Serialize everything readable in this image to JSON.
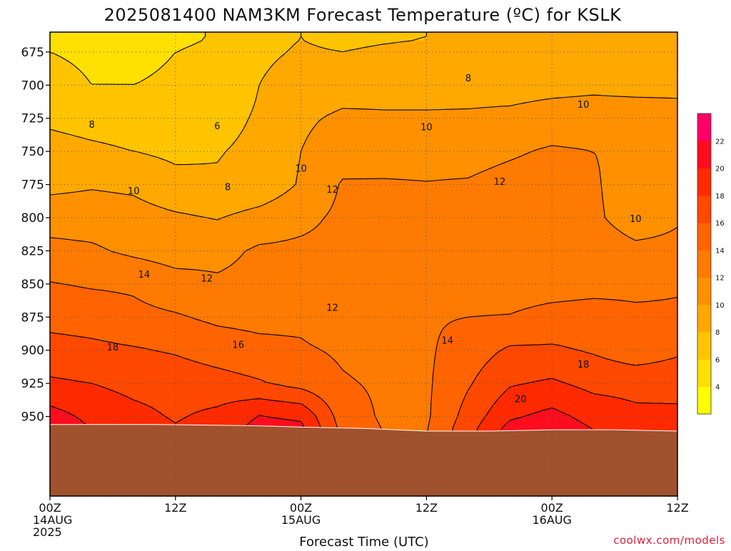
{
  "chart_data": {
    "type": "heatmap",
    "title": "2025081400 NAM3KM Forecast Temperature (ºC) for KSLK",
    "xlabel": "Forecast Time (UTC)",
    "ylabel": "",
    "credit": "coolwx.com/models",
    "y_axis": {
      "unit": "hPa",
      "inverted": true,
      "ylim": [
        1010,
        660
      ],
      "ticks": [
        675,
        700,
        725,
        750,
        775,
        800,
        825,
        850,
        875,
        900,
        925,
        950
      ]
    },
    "x_axis": {
      "unit": "forecast hour",
      "xlim": [
        0,
        60
      ],
      "ticks": [
        {
          "hour": 0,
          "line1": "00Z",
          "line2": "14AUG",
          "line3": "2025"
        },
        {
          "hour": 12,
          "line1": "12Z",
          "line2": "",
          "line3": ""
        },
        {
          "hour": 24,
          "line1": "00Z",
          "line2": "15AUG",
          "line3": ""
        },
        {
          "hour": 36,
          "line1": "12Z",
          "line2": "",
          "line3": ""
        },
        {
          "hour": 48,
          "line1": "00Z",
          "line2": "16AUG",
          "line3": ""
        },
        {
          "hour": 60,
          "line1": "12Z",
          "line2": "",
          "line3": ""
        }
      ]
    },
    "grid": true,
    "colorbar": {
      "placement": "right",
      "levels": [
        2,
        4,
        6,
        8,
        10,
        12,
        14,
        16,
        18,
        20,
        22,
        24
      ],
      "tick_labels": [
        4,
        6,
        8,
        10,
        12,
        14,
        16,
        18,
        20,
        22
      ],
      "colors": [
        "#ffff00",
        "#ffe000",
        "#ffc400",
        "#ffa800",
        "#ff9000",
        "#ff7a00",
        "#ff6400",
        "#ff4800",
        "#ff2a00",
        "#ff0c1e",
        "#ff0066"
      ]
    },
    "ground_color": "#a0522d",
    "surface_pressure": [
      {
        "hour": 0,
        "hPa": 956
      },
      {
        "hour": 10,
        "hPa": 956
      },
      {
        "hour": 20,
        "hPa": 957
      },
      {
        "hour": 24,
        "hPa": 958
      },
      {
        "hour": 30,
        "hPa": 959
      },
      {
        "hour": 36,
        "hPa": 961
      },
      {
        "hour": 42,
        "hPa": 961
      },
      {
        "hour": 48,
        "hPa": 960
      },
      {
        "hour": 54,
        "hPa": 960
      },
      {
        "hour": 60,
        "hPa": 961
      }
    ],
    "hours": [
      0,
      4,
      8,
      12,
      16,
      20,
      24,
      28,
      32,
      36,
      40,
      44,
      48,
      52,
      56,
      60
    ],
    "levels_hPa": [
      665,
      675,
      700,
      725,
      750,
      775,
      800,
      825,
      850,
      875,
      900,
      925,
      950,
      960
    ],
    "temperature_C": [
      [
        5.0,
        5.0,
        5.2,
        5.5,
        6.2,
        7.5,
        8.0,
        7.6,
        7.8,
        8.0,
        8.3,
        8.3,
        8.2,
        8.2,
        8.2,
        8.2
      ],
      [
        6.0,
        5.5,
        5.5,
        6.0,
        6.6,
        7.6,
        8.2,
        8.0,
        8.3,
        8.5,
        8.7,
        8.7,
        8.6,
        8.6,
        8.6,
        8.6
      ],
      [
        7.0,
        6.0,
        6.0,
        6.3,
        6.7,
        8.0,
        9.0,
        9.3,
        9.4,
        9.4,
        9.5,
        9.5,
        9.6,
        9.7,
        9.6,
        9.6
      ],
      [
        7.6,
        7.2,
        7.0,
        6.8,
        7.4,
        8.2,
        9.7,
        10.3,
        10.2,
        10.2,
        10.2,
        10.3,
        10.6,
        10.7,
        10.7,
        10.6
      ],
      [
        8.8,
        8.4,
        8.0,
        7.6,
        7.9,
        8.4,
        10.0,
        11.0,
        11.1,
        11.1,
        11.2,
        11.7,
        12.3,
        12.0,
        11.4,
        11.3
      ],
      [
        9.5,
        9.8,
        9.6,
        8.6,
        8.2,
        8.6,
        10.2,
        12.2,
        12.2,
        12.1,
        12.2,
        12.8,
        13.1,
        12.3,
        10.6,
        11.3
      ],
      [
        11.1,
        11.1,
        10.8,
        10.3,
        9.9,
        10.7,
        11.5,
        12.4,
        12.3,
        12.2,
        12.4,
        12.8,
        13.0,
        12.4,
        10.9,
        11.8
      ],
      [
        12.6,
        12.3,
        11.6,
        11.1,
        11.4,
        12.3,
        12.4,
        12.5,
        12.6,
        12.6,
        12.8,
        12.9,
        12.9,
        13.2,
        12.5,
        12.5
      ],
      [
        14.1,
        13.8,
        13.7,
        12.8,
        12.3,
        12.6,
        13.0,
        12.7,
        13.0,
        13.0,
        13.0,
        13.0,
        13.1,
        13.3,
        13.5,
        13.8
      ],
      [
        15.3,
        15.1,
        14.5,
        14.2,
        13.6,
        13.4,
        13.5,
        12.4,
        13.0,
        13.8,
        14.0,
        14.1,
        14.7,
        14.9,
        14.4,
        14.3
      ],
      [
        16.8,
        16.5,
        16.2,
        15.8,
        15.1,
        14.6,
        14.3,
        13.7,
        13.3,
        13.7,
        15.0,
        16.3,
        16.3,
        15.8,
        14.9,
        15.7
      ],
      [
        18.3,
        18.0,
        17.4,
        17.2,
        16.8,
        16.2,
        15.3,
        14.2,
        13.7,
        13.7,
        15.8,
        17.8,
        18.3,
        17.4,
        17.3,
        17.2
      ],
      [
        20.8,
        19.5,
        18.6,
        17.8,
        18.5,
        20.1,
        19.7,
        15.0,
        13.7,
        13.7,
        16.8,
        19.7,
        20.6,
        19.3,
        18.5,
        18.5
      ],
      [
        21.5,
        20.0,
        19.2,
        18.2,
        19.0,
        20.7,
        20.5,
        15.4,
        13.9,
        13.9,
        17.3,
        20.8,
        21.3,
        20.0,
        19.0,
        19.0
      ]
    ],
    "contour_labels": [
      {
        "hour": 4,
        "hPa": 730,
        "text": "8"
      },
      {
        "hour": 16,
        "hPa": 731,
        "text": "6"
      },
      {
        "hour": 17,
        "hPa": 777,
        "text": "8"
      },
      {
        "hour": 40,
        "hPa": 695,
        "text": "8"
      },
      {
        "hour": 8,
        "hPa": 780,
        "text": "10"
      },
      {
        "hour": 24,
        "hPa": 763,
        "text": "10"
      },
      {
        "hour": 36,
        "hPa": 732,
        "text": "10"
      },
      {
        "hour": 51,
        "hPa": 715,
        "text": "10"
      },
      {
        "hour": 56,
        "hPa": 801,
        "text": "10"
      },
      {
        "hour": 27,
        "hPa": 779,
        "text": "12"
      },
      {
        "hour": 43,
        "hPa": 773,
        "text": "12"
      },
      {
        "hour": 15,
        "hPa": 846,
        "text": "12"
      },
      {
        "hour": 27,
        "hPa": 868,
        "text": "12"
      },
      {
        "hour": 9,
        "hPa": 843,
        "text": "14"
      },
      {
        "hour": 38,
        "hPa": 893,
        "text": "14"
      },
      {
        "hour": 18,
        "hPa": 896,
        "text": "16"
      },
      {
        "hour": 6,
        "hPa": 898,
        "text": "18"
      },
      {
        "hour": 51,
        "hPa": 911,
        "text": "18"
      },
      {
        "hour": 45,
        "hPa": 937,
        "text": "20"
      }
    ]
  }
}
